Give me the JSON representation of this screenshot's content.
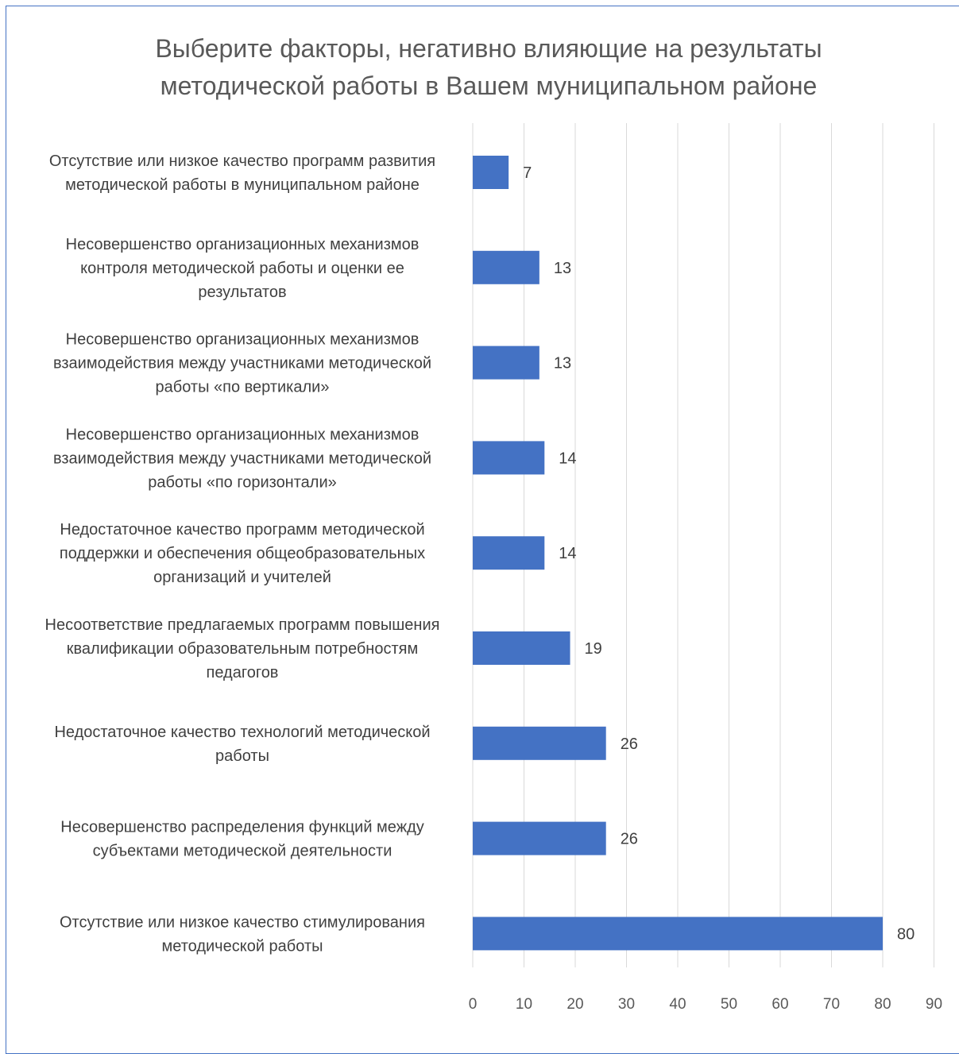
{
  "chart_data": {
    "type": "bar",
    "orientation": "horizontal",
    "title": "Выберите факторы, негативно влияющие на результаты\nметодической работы в Вашем муниципальном районе",
    "categories": [
      [
        "Отсутствие или низкое качество программ развития",
        "методической работы в муниципальном районе"
      ],
      [
        "Несовершенство организационных механизмов",
        "контроля методической работы и оценки ее",
        "результатов"
      ],
      [
        "Несовершенство организационных механизмов",
        "взаимодействия между участниками методической",
        "работы «по вертикали»"
      ],
      [
        "Несовершенство организационных механизмов",
        "взаимодействия между участниками методической",
        "работы «по горизонтали»"
      ],
      [
        "Недостаточное качество программ методической",
        "поддержки и обеспечения общеобразовательных",
        "организаций и учителей"
      ],
      [
        "Несоответствие предлагаемых программ повышения",
        "квалификации образовательным потребностям",
        "педагогов"
      ],
      [
        "Недостаточное качество технологий методической",
        "работы"
      ],
      [
        "Несовершенство распределения функций между",
        "субъектами методической деятельности"
      ],
      [
        "Отсутствие или низкое качество стимулирования",
        "методической работы"
      ]
    ],
    "values": [
      7,
      13,
      13,
      14,
      14,
      19,
      26,
      26,
      80
    ],
    "xlim": [
      0,
      90
    ],
    "xticks": [
      0,
      10,
      20,
      30,
      40,
      50,
      60,
      70,
      80,
      90
    ],
    "grid": true,
    "legend": "none",
    "bar_color": "#4472c4",
    "grid_color": "#d9d9d9"
  }
}
